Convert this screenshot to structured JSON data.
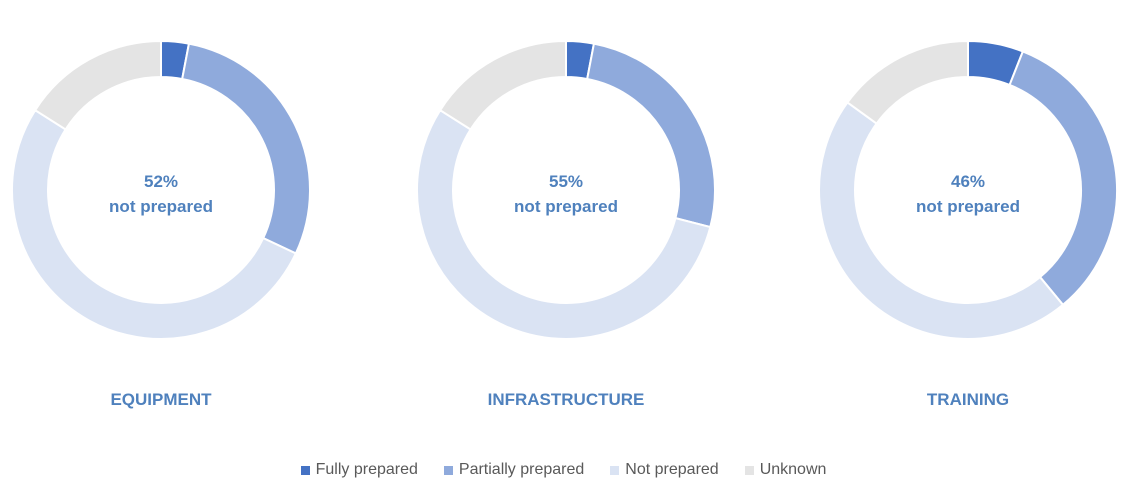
{
  "chart_data": [
    {
      "type": "pie",
      "donut": true,
      "title": "EQUIPMENT",
      "center_value": "52%",
      "center_label": "not prepared",
      "categories": [
        "Fully prepared",
        "Partially prepared",
        "Not prepared",
        "Unknown"
      ],
      "values": [
        3,
        29,
        52,
        16
      ]
    },
    {
      "type": "pie",
      "donut": true,
      "title": "INFRASTRUCTURE",
      "center_value": "55%",
      "center_label": "not prepared",
      "categories": [
        "Fully prepared",
        "Partially prepared",
        "Not prepared",
        "Unknown"
      ],
      "values": [
        3,
        26,
        55,
        16
      ]
    },
    {
      "type": "pie",
      "donut": true,
      "title": "TRAINING",
      "center_value": "46%",
      "center_label": "not prepared",
      "categories": [
        "Fully prepared",
        "Partially prepared",
        "Not prepared",
        "Unknown"
      ],
      "values": [
        6,
        33,
        46,
        15
      ]
    }
  ],
  "legend": {
    "placement": "bottom",
    "items": [
      {
        "label": "Fully prepared",
        "color": "#4472c4"
      },
      {
        "label": "Partially prepared",
        "color": "#8faadc"
      },
      {
        "label": "Not prepared",
        "color": "#dae3f3"
      },
      {
        "label": "Unknown",
        "color": "#e4e4e4"
      }
    ]
  }
}
